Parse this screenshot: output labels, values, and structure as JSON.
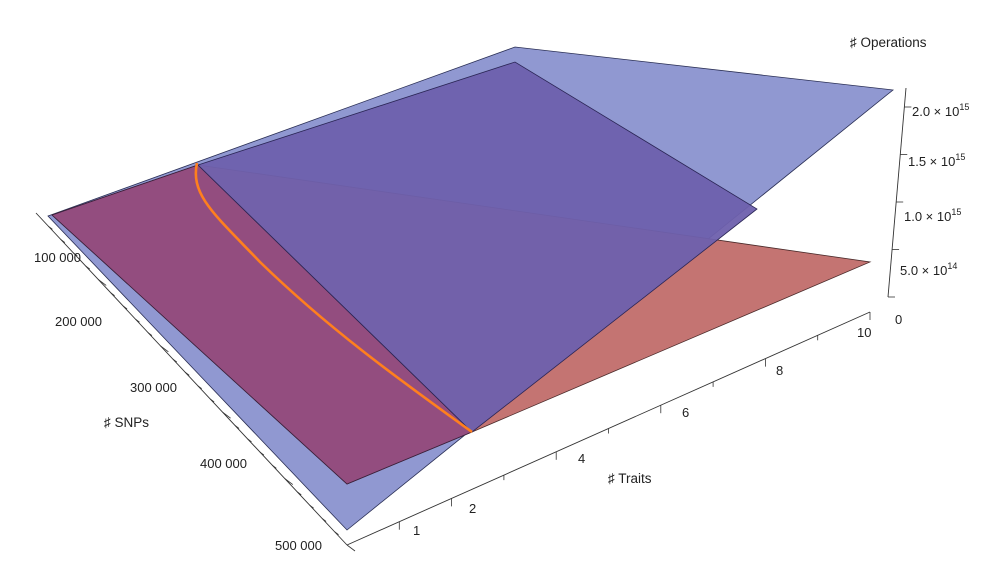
{
  "chart_data": {
    "type": "surface3d",
    "x_axis": {
      "label": "♯ SNPs",
      "range": [
        0,
        500000
      ],
      "ticks": [
        {
          "value": 100000,
          "label": "100 000"
        },
        {
          "value": 200000,
          "label": "200 000"
        },
        {
          "value": 300000,
          "label": "300 000"
        },
        {
          "value": 400000,
          "label": "400 000"
        },
        {
          "value": 500000,
          "label": "500 000"
        }
      ]
    },
    "y_axis": {
      "label": "♯ Traits",
      "range": [
        0,
        10
      ],
      "ticks": [
        {
          "value": 1,
          "label": "1"
        },
        {
          "value": 2,
          "label": "2"
        },
        {
          "value": 4,
          "label": "4"
        },
        {
          "value": 6,
          "label": "6"
        },
        {
          "value": 8,
          "label": "8"
        },
        {
          "value": 10,
          "label": "10"
        }
      ]
    },
    "z_axis": {
      "label": "♯ Operations",
      "range": [
        0,
        2200000000000000.0
      ],
      "ticks": [
        {
          "value": 0,
          "mant": "0",
          "exp": ""
        },
        {
          "value": 500000000000000.0,
          "mant": "5.0 × 10",
          "exp": "14"
        },
        {
          "value": 1000000000000000.0,
          "mant": "1.0 × 10",
          "exp": "15"
        },
        {
          "value": 1500000000000000.0,
          "mant": "1.5 × 10",
          "exp": "15"
        },
        {
          "value": 2000000000000000.0,
          "mant": "2.0 × 10",
          "exp": "15"
        }
      ]
    },
    "surfaces": [
      {
        "color": "#c0666a",
        "opacity": 0.85
      },
      {
        "color": "#6670bd",
        "opacity": 0.72
      }
    ],
    "intersection_color": "#ff7f1e",
    "grid": false
  }
}
